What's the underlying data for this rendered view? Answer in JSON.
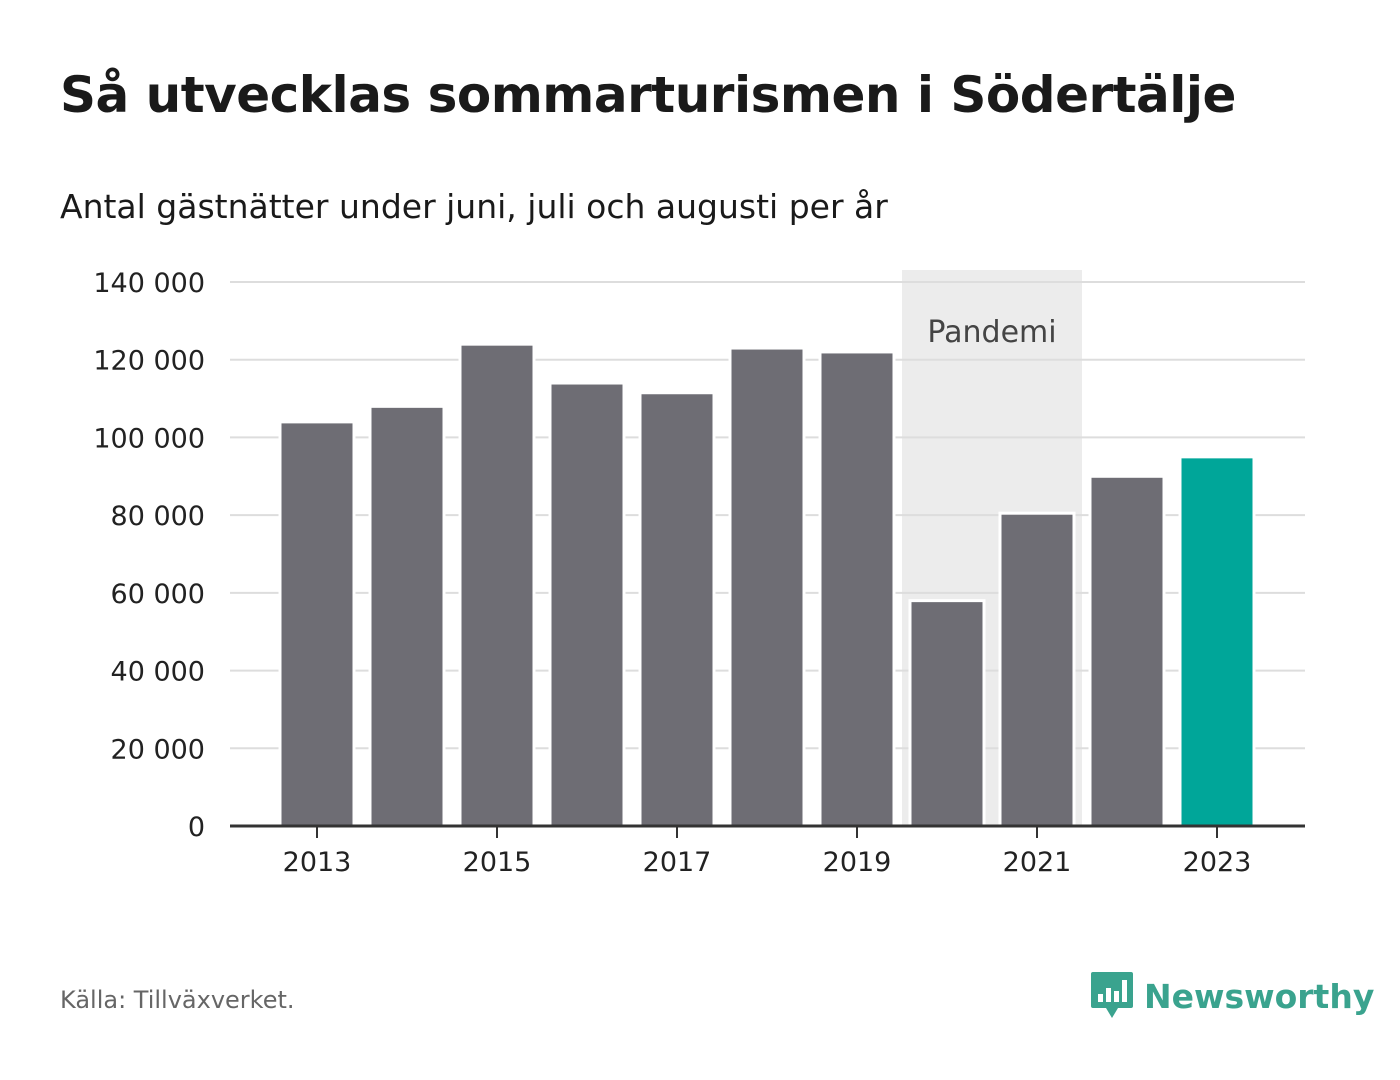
{
  "title": "Så utvecklas sommarturismen i Södertälje",
  "subtitle": "Antal gästnätter under juni, juli och augusti per år",
  "source": "Källa: Tillväxverket.",
  "logo": {
    "text": "Newsworthy",
    "icon": "bar-chart-speech-bubble-icon",
    "color": "#3aa38e"
  },
  "chart_data": {
    "type": "bar",
    "categories": [
      "2013",
      "2014",
      "2015",
      "2016",
      "2017",
      "2018",
      "2019",
      "2020",
      "2021",
      "2022",
      "2023"
    ],
    "values": [
      104000,
      108000,
      124000,
      114000,
      111500,
      123000,
      122000,
      58000,
      80500,
      90000,
      95000
    ],
    "x_tick_labels": [
      "2013",
      "2015",
      "2017",
      "2019",
      "2021",
      "2023"
    ],
    "y_ticks": [
      0,
      20000,
      40000,
      60000,
      80000,
      100000,
      120000,
      140000
    ],
    "y_tick_labels": [
      "0",
      "20 000",
      "40 000",
      "60 000",
      "80 000",
      "100 000",
      "120 000",
      "140 000"
    ],
    "ylim": [
      0,
      140000
    ],
    "grid": true,
    "bar_color": "#6e6d74",
    "highlight_color": "#00a699",
    "highlight_category": "2023",
    "annotation": {
      "label": "Pandemi",
      "start": "2020",
      "end": "2021",
      "color": "#ececec"
    }
  }
}
